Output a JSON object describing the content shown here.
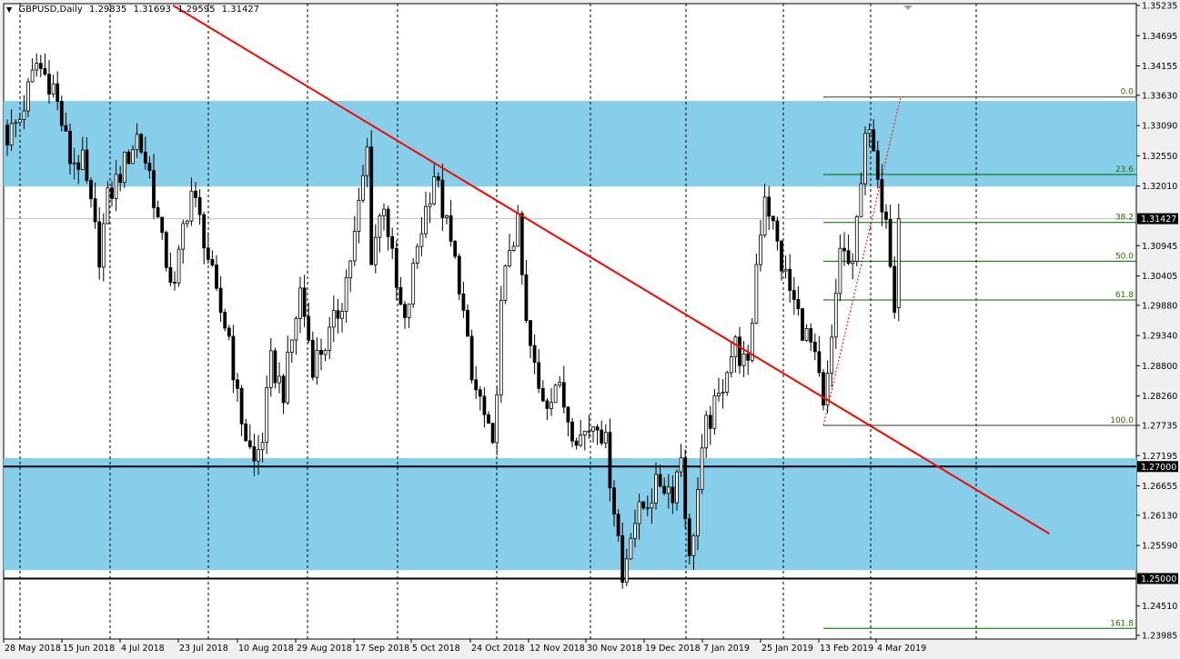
{
  "header": {
    "symbol_timeframe": "GBPUSD,Daily",
    "open": "1.29835",
    "high": "1.31693",
    "low": "1.29595",
    "close": "1.31427"
  },
  "colors": {
    "zone": "#87ceeb",
    "trendline": "#ff0000",
    "fibonacci": "#006400",
    "bull_body": "#ffffff",
    "bear_body": "#000000",
    "grid": "#000000",
    "bid_line": "#c0c0c0"
  },
  "chart_data": {
    "type": "candlestick",
    "title": "GBPUSD,Daily",
    "ylim": [
      1.23985,
      1.35235
    ],
    "grid": true,
    "last_bar": {
      "open": 1.29835,
      "high": 1.31693,
      "low": 1.29595,
      "close": 1.31427
    },
    "approx_close_path": [
      [
        0,
        1.329
      ],
      [
        3,
        1.3322
      ],
      [
        7,
        1.342
      ],
      [
        11,
        1.3379
      ],
      [
        15,
        1.3249
      ],
      [
        18,
        1.3241
      ],
      [
        22,
        1.3079
      ],
      [
        24,
        1.3176
      ],
      [
        28,
        1.3241
      ],
      [
        31,
        1.329
      ],
      [
        34,
        1.3225
      ],
      [
        37,
        1.3095
      ],
      [
        40,
        1.3014
      ],
      [
        42,
        1.3127
      ],
      [
        44,
        1.3192
      ],
      [
        47,
        1.3111
      ],
      [
        50,
        1.2998
      ],
      [
        53,
        1.2933
      ],
      [
        55,
        1.2819
      ],
      [
        57,
        1.2754
      ],
      [
        59,
        1.2705
      ],
      [
        61,
        1.2754
      ],
      [
        63,
        1.2884
      ],
      [
        66,
        1.2835
      ],
      [
        70,
        1.3014
      ],
      [
        73,
        1.2884
      ],
      [
        77,
        1.2933
      ],
      [
        80,
        1.2998
      ],
      [
        83,
        1.3111
      ],
      [
        86,
        1.3265
      ],
      [
        87,
        1.3079
      ],
      [
        90,
        1.3176
      ],
      [
        93,
        1.3014
      ],
      [
        95,
        1.2949
      ],
      [
        98,
        1.3095
      ],
      [
        102,
        1.3225
      ],
      [
        104,
        1.316
      ],
      [
        106,
        1.3095
      ],
      [
        108,
        1.303
      ],
      [
        111,
        1.2851
      ],
      [
        113,
        1.2819
      ],
      [
        116,
        1.2722
      ],
      [
        118,
        1.2981
      ],
      [
        120,
        1.3095
      ],
      [
        122,
        1.3127
      ],
      [
        124,
        1.2949
      ],
      [
        127,
        1.2835
      ],
      [
        129,
        1.2819
      ],
      [
        131,
        1.2851
      ],
      [
        135,
        1.277
      ],
      [
        137,
        1.2754
      ],
      [
        141,
        1.2787
      ],
      [
        143,
        1.2738
      ],
      [
        146,
        1.2575
      ],
      [
        147,
        1.2494
      ],
      [
        149,
        1.2592
      ],
      [
        153,
        1.264
      ],
      [
        156,
        1.2673
      ],
      [
        159,
        1.2657
      ],
      [
        161,
        1.2722
      ],
      [
        163,
        1.2527
      ],
      [
        165,
        1.2657
      ],
      [
        167,
        1.277
      ],
      [
        170,
        1.2819
      ],
      [
        172,
        1.2884
      ],
      [
        174,
        1.2916
      ],
      [
        177,
        1.2868
      ],
      [
        179,
        1.3062
      ],
      [
        181,
        1.3192
      ],
      [
        183,
        1.3127
      ],
      [
        185,
        1.3062
      ],
      [
        187,
        1.3014
      ],
      [
        190,
        1.2949
      ],
      [
        192,
        1.2916
      ],
      [
        194,
        1.2851
      ],
      [
        195,
        1.2795
      ],
      [
        197,
        1.2916
      ],
      [
        199,
        1.3095
      ],
      [
        202,
        1.3046
      ],
      [
        204,
        1.3225
      ],
      [
        205,
        1.3306
      ],
      [
        207,
        1.3257
      ],
      [
        208,
        1.3192
      ],
      [
        210,
        1.316
      ],
      [
        212,
        1.2998
      ],
      [
        213,
        1.31427
      ]
    ],
    "price_ticks": [
      "1.35235",
      "1.34695",
      "1.34155",
      "1.33630",
      "1.33090",
      "1.32550",
      "1.32010",
      "1.30945",
      "1.30405",
      "1.29880",
      "1.29340",
      "1.28800",
      "1.28260",
      "1.27735",
      "1.27195",
      "1.26655",
      "1.26130",
      "1.25590",
      "1.24510",
      "1.23985"
    ],
    "date_labels": [
      "28 May 2018",
      "15 Jun 2018",
      "4 Jul 2018",
      "23 Jul 2018",
      "10 Aug 2018",
      "29 Aug 2018",
      "17 Sep 2018",
      "5 Oct 2018",
      "24 Oct 2018",
      "12 Nov 2018",
      "30 Nov 2018",
      "19 Dec 2018",
      "7 Jan 2019",
      "25 Jan 2019",
      "13 Feb 2019",
      "4 Mar 2019"
    ],
    "price_markers": [
      "1.31427",
      "1.27000",
      "1.25000"
    ],
    "zones": [
      {
        "from": 1.32,
        "to": 1.3353
      },
      {
        "from": 1.2515,
        "to": 1.2715
      }
    ],
    "horizontal_lines": [
      1.27,
      1.25
    ],
    "trendline": {
      "start": [
        39.6,
        1.35235
      ],
      "end": [
        249,
        1.258
      ]
    },
    "fibonacci": {
      "high": 1.336,
      "low": 1.27735,
      "start_bar": 195,
      "levels": [
        {
          "label": "0.0",
          "ratio": 0.0
        },
        {
          "label": "23.6",
          "ratio": 0.236
        },
        {
          "label": "38.2",
          "ratio": 0.382
        },
        {
          "label": "50.0",
          "ratio": 0.5
        },
        {
          "label": "61.8",
          "ratio": 0.618
        },
        {
          "label": "100.0",
          "ratio": 1.0
        },
        {
          "label": "161.8",
          "ratio": 1.618
        }
      ]
    }
  }
}
